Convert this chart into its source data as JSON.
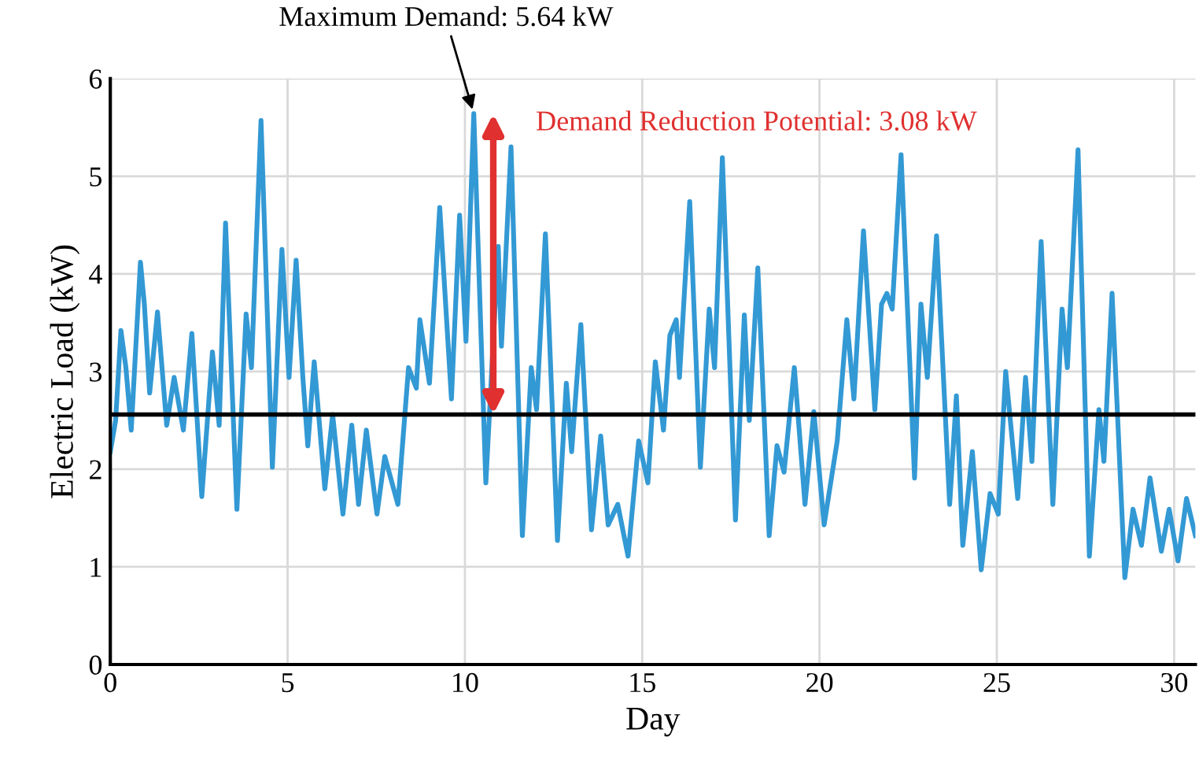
{
  "chart_data": {
    "type": "line",
    "xlabel": "Day",
    "ylabel": "Electric Load (kW)",
    "xlim": [
      0,
      30.6
    ],
    "xticks": [
      0,
      5,
      10,
      15,
      20,
      25,
      30
    ],
    "ylim": [
      0,
      6
    ],
    "yticks": [
      0,
      1,
      2,
      3,
      4,
      5,
      6
    ],
    "grid": true,
    "marker": "none",
    "line_style": "solid",
    "series": [
      {
        "color": "#3399d4",
        "x": [
          0,
          0.15,
          0.3,
          0.44,
          0.59,
          0.85,
          0.96,
          1.11,
          1.33,
          1.59,
          1.8,
          2.06,
          2.3,
          2.58,
          2.88,
          3.07,
          3.25,
          3.57,
          3.83,
          3.98,
          4.25,
          4.57,
          4.84,
          5.04,
          5.24,
          5.43,
          5.57,
          5.75,
          6.05,
          6.27,
          6.56,
          6.81,
          7.0,
          7.22,
          7.52,
          7.74,
          8.11,
          8.41,
          8.63,
          8.73,
          9.0,
          9.29,
          9.62,
          9.85,
          10.03,
          10.25,
          10.59,
          10.94,
          11.03,
          11.3,
          11.62,
          11.87,
          12.02,
          12.27,
          12.61,
          12.86,
          13.01,
          13.27,
          13.57,
          13.83,
          14.04,
          14.31,
          14.6,
          14.9,
          15.16,
          15.37,
          15.6,
          15.78,
          15.96,
          16.05,
          16.34,
          16.64,
          16.89,
          17.04,
          17.26,
          17.63,
          17.88,
          18.02,
          18.26,
          18.58,
          18.8,
          19.0,
          19.29,
          19.59,
          19.84,
          20.13,
          20.5,
          20.77,
          20.97,
          21.24,
          21.56,
          21.75,
          21.9,
          22.05,
          22.3,
          22.68,
          22.86,
          23.04,
          23.3,
          23.67,
          23.86,
          24.04,
          24.31,
          24.56,
          24.81,
          25.04,
          25.25,
          25.59,
          25.81,
          25.99,
          26.25,
          26.58,
          26.84,
          26.99,
          27.29,
          27.61,
          27.88,
          28.02,
          28.25,
          28.61,
          28.84,
          29.08,
          29.32,
          29.64,
          29.86,
          30.11,
          30.35,
          30.6
        ],
        "values": [
          2.18,
          2.5,
          3.42,
          3.04,
          2.4,
          4.12,
          3.69,
          2.78,
          3.61,
          2.45,
          2.94,
          2.4,
          3.39,
          1.72,
          3.2,
          2.45,
          4.52,
          1.59,
          3.59,
          3.04,
          5.57,
          2.02,
          4.25,
          2.94,
          4.14,
          2.94,
          2.24,
          3.1,
          1.8,
          2.56,
          1.54,
          2.45,
          1.64,
          2.4,
          1.54,
          2.13,
          1.64,
          3.04,
          2.83,
          3.53,
          2.88,
          4.68,
          2.72,
          4.6,
          3.31,
          5.64,
          1.86,
          4.28,
          3.26,
          5.3,
          1.32,
          3.04,
          2.61,
          4.41,
          1.27,
          2.88,
          2.18,
          3.48,
          1.38,
          2.34,
          1.43,
          1.64,
          1.11,
          2.29,
          1.86,
          3.1,
          2.4,
          3.37,
          3.53,
          2.94,
          4.74,
          2.02,
          3.64,
          3.04,
          5.19,
          1.48,
          3.58,
          2.5,
          4.06,
          1.32,
          2.24,
          1.97,
          3.04,
          1.64,
          2.59,
          1.43,
          2.29,
          3.53,
          2.72,
          4.44,
          2.61,
          3.69,
          3.8,
          3.64,
          5.22,
          1.91,
          3.69,
          2.94,
          4.39,
          1.64,
          2.75,
          1.22,
          2.18,
          0.97,
          1.75,
          1.54,
          3.0,
          1.7,
          2.94,
          2.08,
          4.33,
          1.64,
          3.64,
          3.04,
          5.27,
          1.11,
          2.61,
          2.08,
          3.8,
          0.89,
          1.59,
          1.22,
          1.91,
          1.16,
          1.59,
          1.06,
          1.7,
          1.32
        ]
      }
    ],
    "ref_lines": [
      {
        "axis": "y",
        "value": 2.56,
        "label": null,
        "color": "#000000"
      }
    ],
    "annotations": [
      {
        "text": "Maximum Demand: 5.64 kW",
        "x": 10.25,
        "y": 5.64
      },
      "Demand Reduction Potential: 3.08 kW"
    ]
  }
}
